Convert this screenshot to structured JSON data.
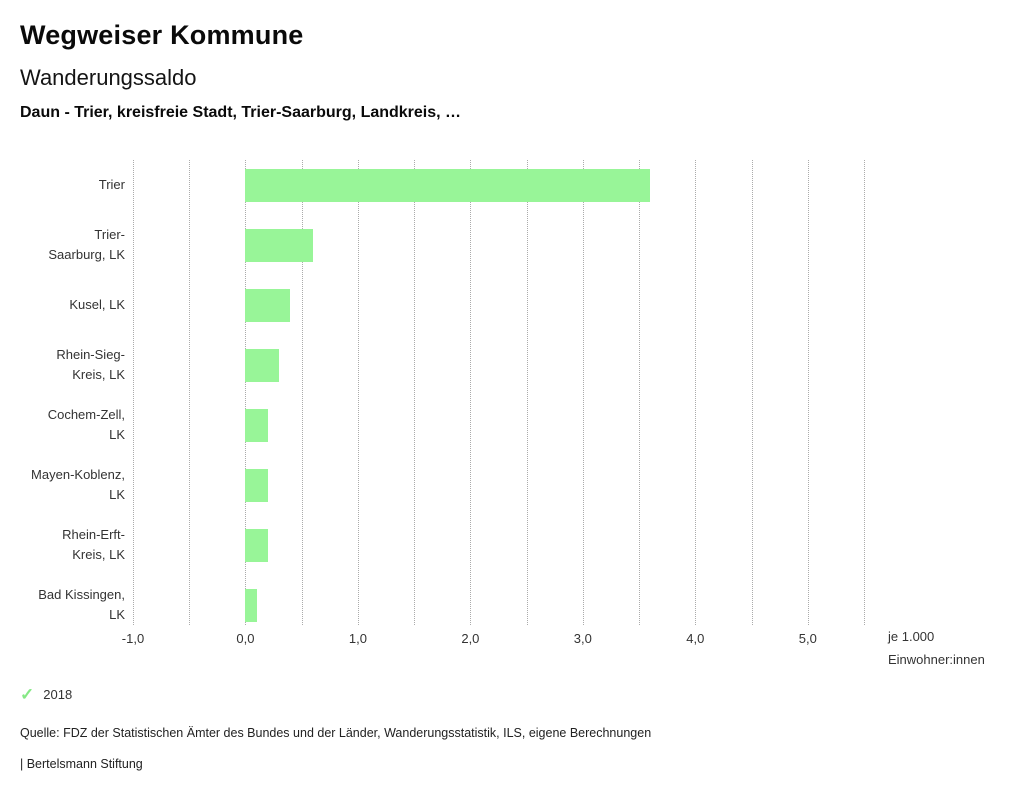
{
  "header": {
    "title": "Wegweiser Kommune",
    "subtitle": "Wanderungssaldo",
    "selection": "Daun - Trier, kreisfreie Stadt, Trier-Saarburg, Landkreis, …"
  },
  "chart_data": {
    "type": "bar",
    "orientation": "horizontal",
    "title": "Wanderungssaldo",
    "categories": [
      "Trier",
      "Trier-Saarburg, LK",
      "Kusel, LK",
      "Rhein-Sieg-Kreis, LK",
      "Cochem-Zell, LK",
      "Mayen-Koblenz, LK",
      "Rhein-Erft-Kreis, LK",
      "Bad Kissingen, LK"
    ],
    "categories_lines": [
      [
        "Trier"
      ],
      [
        "Trier-",
        "Saarburg, LK"
      ],
      [
        "Kusel, LK"
      ],
      [
        "Rhein-Sieg-",
        "Kreis, LK"
      ],
      [
        "Cochem-Zell,",
        "LK"
      ],
      [
        "Mayen-Koblenz,",
        "LK"
      ],
      [
        "Rhein-Erft-",
        "Kreis, LK"
      ],
      [
        "Bad Kissingen,",
        "LK"
      ]
    ],
    "values": [
      3.6,
      0.6,
      0.4,
      0.3,
      0.2,
      0.2,
      0.2,
      0.1
    ],
    "series_name": "2018",
    "unit": "je 1.000 Einwohner:innen",
    "unit_label_lines": [
      "je 1.000",
      "Einwohner:innen"
    ],
    "xlim": [
      -1.0,
      5.5
    ],
    "x_ticks": [
      -1,
      0,
      1,
      2,
      3,
      4,
      5
    ],
    "x_tick_labels": [
      "-1,0",
      "0,0",
      "1,0",
      "2,0",
      "3,0",
      "4,0",
      "5,0"
    ],
    "gridline_step": 0.5,
    "grid": true,
    "legend_position": "bottom-left",
    "bar_color": "#98f598"
  },
  "colors": {
    "bar": "#98f598",
    "check": "#85e885",
    "grid": "#ababab"
  },
  "legend": {
    "check_glyph": "✓",
    "label": "2018"
  },
  "footer": {
    "source": "Quelle: FDZ der Statistischen Ämter des Bundes und der Länder, Wanderungsstatistik, ILS, eigene Berechnungen",
    "attribution": "| Bertelsmann Stiftung"
  }
}
